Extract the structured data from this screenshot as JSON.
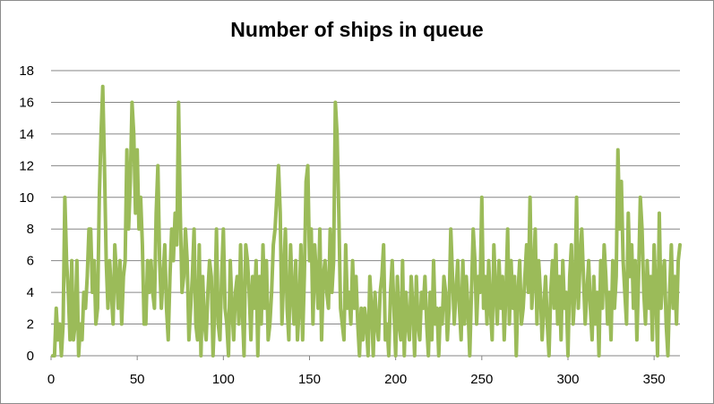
{
  "chart_data": {
    "type": "line",
    "title": "Number of ships in queue",
    "xlabel": "",
    "ylabel": "",
    "xlim": [
      0,
      365
    ],
    "ylim": [
      0,
      18
    ],
    "x_ticks": [
      0,
      50,
      100,
      150,
      200,
      250,
      300,
      350
    ],
    "y_ticks": [
      0,
      2,
      4,
      6,
      8,
      10,
      12,
      14,
      16,
      18
    ],
    "grid": "horizontal",
    "legend": "none",
    "line_color": "#9bbb59",
    "series": [
      {
        "values": [
          0,
          0,
          3,
          1,
          2,
          0,
          2,
          10,
          6,
          4,
          1,
          6,
          1,
          2,
          6,
          0,
          2,
          1,
          4,
          3,
          5,
          8,
          8,
          4,
          6,
          2,
          3,
          10,
          14,
          17,
          12,
          6,
          3,
          6,
          4,
          2,
          7,
          5,
          3,
          6,
          2,
          5,
          6,
          13,
          8,
          11,
          16,
          14,
          9,
          13,
          8,
          10,
          7,
          2,
          2,
          6,
          4,
          6,
          4,
          3,
          9,
          12,
          6,
          3,
          5,
          7,
          3,
          1,
          5,
          8,
          6,
          9,
          7,
          16,
          9,
          4,
          5,
          8,
          6,
          1,
          3,
          5,
          8,
          2,
          1,
          7,
          0,
          5,
          2,
          1,
          4,
          6,
          5,
          0,
          3,
          8,
          2,
          1,
          5,
          8,
          3,
          2,
          0,
          6,
          3,
          1,
          4,
          5,
          2,
          7,
          3,
          0,
          7,
          6,
          4,
          1,
          5,
          3,
          6,
          0,
          5,
          2,
          7,
          3,
          6,
          1,
          2,
          4,
          7,
          8,
          10,
          12,
          9,
          2,
          5,
          8,
          3,
          1,
          7,
          4,
          2,
          6,
          1,
          3,
          7,
          1,
          5,
          11,
          12,
          6,
          8,
          2,
          7,
          5,
          3,
          8,
          1,
          5,
          6,
          4,
          3,
          8,
          4,
          6,
          16,
          14,
          9,
          3,
          2,
          1,
          7,
          3,
          4,
          2,
          6,
          3,
          5,
          2,
          0,
          3,
          1,
          3,
          2,
          0,
          5,
          3,
          0,
          4,
          2,
          1,
          4,
          5,
          7,
          1,
          2,
          0,
          4,
          6,
          3,
          0,
          5,
          2,
          1,
          6,
          0,
          4,
          2,
          1,
          5,
          3,
          0,
          5,
          2,
          1,
          4,
          3,
          5,
          2,
          0,
          4,
          1,
          6,
          2,
          3,
          0,
          3,
          2,
          5,
          4,
          1,
          3,
          8,
          5,
          2,
          4,
          6,
          3,
          1,
          6,
          2,
          5,
          3,
          0,
          4,
          8,
          6,
          2,
          5,
          4,
          10,
          3,
          5,
          2,
          6,
          3,
          1,
          7,
          4,
          2,
          6,
          3,
          5,
          1,
          4,
          8,
          2,
          6,
          3,
          5,
          0,
          4,
          6,
          2,
          3,
          5,
          7,
          4,
          10,
          3,
          5,
          8,
          2,
          6,
          4,
          1,
          3,
          5,
          2,
          0,
          4,
          6,
          3,
          7,
          2,
          5,
          1,
          6,
          3,
          4,
          0,
          5,
          7,
          2,
          4,
          10,
          3,
          6,
          8,
          5,
          2,
          4,
          6,
          3,
          1,
          5,
          2,
          4,
          0,
          6,
          3,
          7,
          5,
          2,
          4,
          1,
          6,
          3,
          5,
          13,
          8,
          11,
          6,
          4,
          2,
          9,
          5,
          7,
          3,
          6,
          1,
          5,
          10,
          8,
          4,
          2,
          6,
          3,
          5,
          1,
          7,
          4,
          0,
          9,
          3,
          5,
          6,
          2,
          0,
          4,
          7,
          3,
          5,
          2,
          6,
          7
        ]
      }
    ]
  }
}
